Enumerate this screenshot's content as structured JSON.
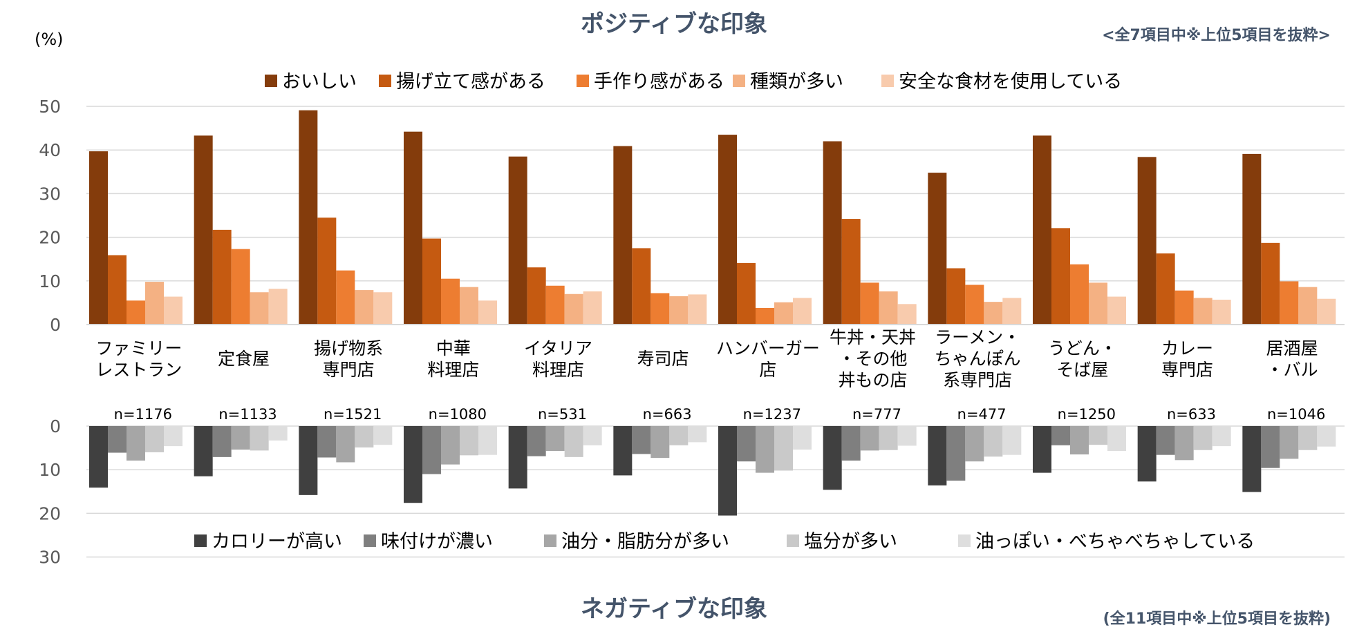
{
  "chart_data": [
    {
      "type": "bar",
      "title": "ポジティブな印象",
      "note": "<全7項目中※上位5項目を抜粋>",
      "ylabel": "(%)",
      "ylim": [
        0,
        50
      ],
      "yticks": [
        "0",
        "10",
        "20",
        "30",
        "40",
        "50"
      ],
      "categories": [
        [
          "ファミリー",
          "レストラン"
        ],
        [
          "定食屋"
        ],
        [
          "揚げ物系",
          "専門店"
        ],
        [
          "中華",
          "料理店"
        ],
        [
          "イタリア",
          "料理店"
        ],
        [
          "寿司店"
        ],
        [
          "ハンバーガー",
          "店"
        ],
        [
          "牛丼・天丼",
          "・その他",
          "丼もの店"
        ],
        [
          "ラーメン・",
          "ちゃんぽん",
          "系専門店"
        ],
        [
          "うどん・",
          "そば屋"
        ],
        [
          "カレー",
          "専門店"
        ],
        [
          "居酒屋",
          "・バル"
        ]
      ],
      "sample_sizes": [
        "n=1176",
        "n=1133",
        "n=1521",
        "n=1080",
        "n=531",
        "n=663",
        "n=1237",
        "n=777",
        "n=477",
        "n=1250",
        "n=633",
        "n=1046"
      ],
      "series": [
        {
          "name": "おいしい",
          "color": "#843c0c",
          "values": [
            39.7,
            43.3,
            49.1,
            44.2,
            38.5,
            40.9,
            43.5,
            42.0,
            34.8,
            43.3,
            38.4,
            39.1
          ]
        },
        {
          "name": "揚げ立て感がある",
          "color": "#c55a11",
          "values": [
            15.9,
            21.7,
            24.5,
            19.7,
            13.1,
            17.5,
            14.1,
            24.2,
            12.9,
            22.1,
            16.3,
            18.7
          ]
        },
        {
          "name": "手作り感がある",
          "color": "#ed7d31",
          "values": [
            5.5,
            17.3,
            12.4,
            10.5,
            8.9,
            7.2,
            3.8,
            9.6,
            9.1,
            13.8,
            7.8,
            9.9
          ]
        },
        {
          "name": "種類が多い",
          "color": "#f4b183",
          "values": [
            9.8,
            7.4,
            7.9,
            8.6,
            7.0,
            6.5,
            5.1,
            7.6,
            5.2,
            9.6,
            6.1,
            8.6
          ]
        },
        {
          "name": "安全な食材を使用している",
          "color": "#f8cbad",
          "values": [
            6.4,
            8.2,
            7.4,
            5.5,
            7.6,
            6.9,
            6.1,
            4.7,
            6.1,
            6.4,
            5.7,
            5.9
          ]
        }
      ]
    },
    {
      "type": "bar",
      "title": "ネガティブな印象",
      "note": "(全11項目中※上位5項目を抜粋)",
      "ylim": [
        0,
        30
      ],
      "orientation": "downward",
      "yticks": [
        "0",
        "10",
        "20",
        "30"
      ],
      "series": [
        {
          "name": "カロリーが高い",
          "color": "#404040",
          "values": [
            14.1,
            11.5,
            15.8,
            17.6,
            14.3,
            11.3,
            20.5,
            14.6,
            13.6,
            10.7,
            12.7,
            15.1
          ]
        },
        {
          "name": "味付けが濃い",
          "color": "#7f7f7f",
          "values": [
            6.1,
            7.1,
            7.2,
            11.0,
            6.9,
            6.4,
            8.1,
            7.9,
            12.5,
            4.4,
            6.6,
            9.6
          ]
        },
        {
          "name": "油分・脂肪分が多い",
          "color": "#a6a6a6",
          "values": [
            7.9,
            5.4,
            8.3,
            8.8,
            5.7,
            7.3,
            10.7,
            5.6,
            8.1,
            6.5,
            7.8,
            7.5
          ]
        },
        {
          "name": "塩分が多い",
          "color": "#c9c9c9",
          "values": [
            6.0,
            5.6,
            4.9,
            6.7,
            7.1,
            4.4,
            10.2,
            5.5,
            7.0,
            4.3,
            5.5,
            5.5
          ]
        },
        {
          "name": "油っぽい・べちゃべちゃしている",
          "color": "#dedede",
          "values": [
            4.6,
            3.3,
            4.3,
            6.6,
            4.4,
            3.7,
            5.4,
            4.5,
            6.6,
            5.7,
            4.6,
            4.7
          ]
        }
      ]
    }
  ]
}
